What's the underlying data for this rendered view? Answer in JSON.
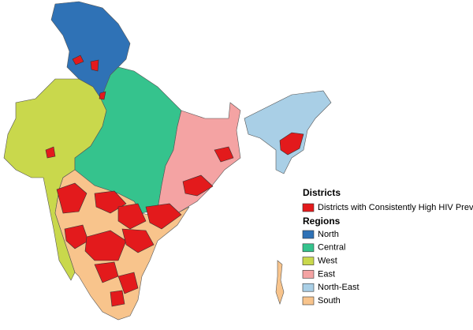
{
  "legend": {
    "districts_title": "Districts",
    "districts": [
      {
        "label": "Districts with Consistently High HIV Prevalence",
        "color": "#e31a1c"
      }
    ],
    "regions_title": "Regions",
    "regions": [
      {
        "label": "North",
        "color": "#2f72b6"
      },
      {
        "label": "Central",
        "color": "#35c38d"
      },
      {
        "label": "West",
        "color": "#c9d84c"
      },
      {
        "label": "East",
        "color": "#f4a3a3"
      },
      {
        "label": "North-East",
        "color": "#a9cfe6"
      },
      {
        "label": "South",
        "color": "#f8c48c"
      }
    ]
  }
}
